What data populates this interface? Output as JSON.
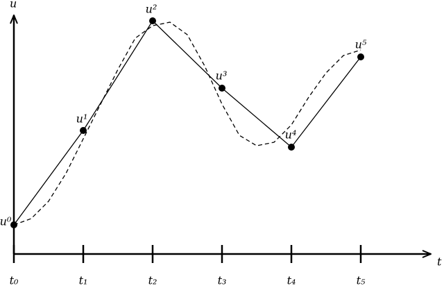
{
  "chart_data": {
    "type": "line",
    "x_label": "t",
    "y_label": "u",
    "xlim": [
      0,
      6
    ],
    "ylim": [
      0,
      34
    ],
    "xticks": [
      {
        "value": 0,
        "label": "t₀"
      },
      {
        "value": 1,
        "label": "t₁"
      },
      {
        "value": 2,
        "label": "t₂"
      },
      {
        "value": 3,
        "label": "t₃"
      },
      {
        "value": 4,
        "label": "t₄"
      },
      {
        "value": 5,
        "label": "t₅"
      }
    ],
    "series": [
      {
        "color": "#000000",
        "style": "solid",
        "markers": true,
        "x": [
          0,
          1,
          2,
          3,
          4,
          5
        ],
        "values": [
          4.2,
          17.8,
          33.6,
          23.9,
          15.4,
          28.4
        ],
        "value_labels": [
          "u⁰",
          "u¹",
          "u²",
          "u³",
          "u⁴",
          "u⁵"
        ]
      },
      {
        "color": "#000000",
        "style": "dashed",
        "markers": false,
        "x": [
          0,
          0.25,
          0.5,
          0.75,
          1,
          1.25,
          1.5,
          1.75,
          2,
          2.25,
          2.5,
          2.75,
          3,
          3.25,
          3.5,
          3.75,
          4,
          4.25,
          4.5,
          4.75,
          5
        ],
        "values": [
          4.2,
          5.1,
          7.6,
          11.6,
          16.6,
          21.6,
          26.6,
          31.1,
          32.9,
          33.4,
          31.6,
          27.1,
          21.6,
          17.1,
          15.6,
          16.1,
          18.6,
          22.6,
          26.1,
          28.6,
          29.4
        ]
      }
    ]
  }
}
